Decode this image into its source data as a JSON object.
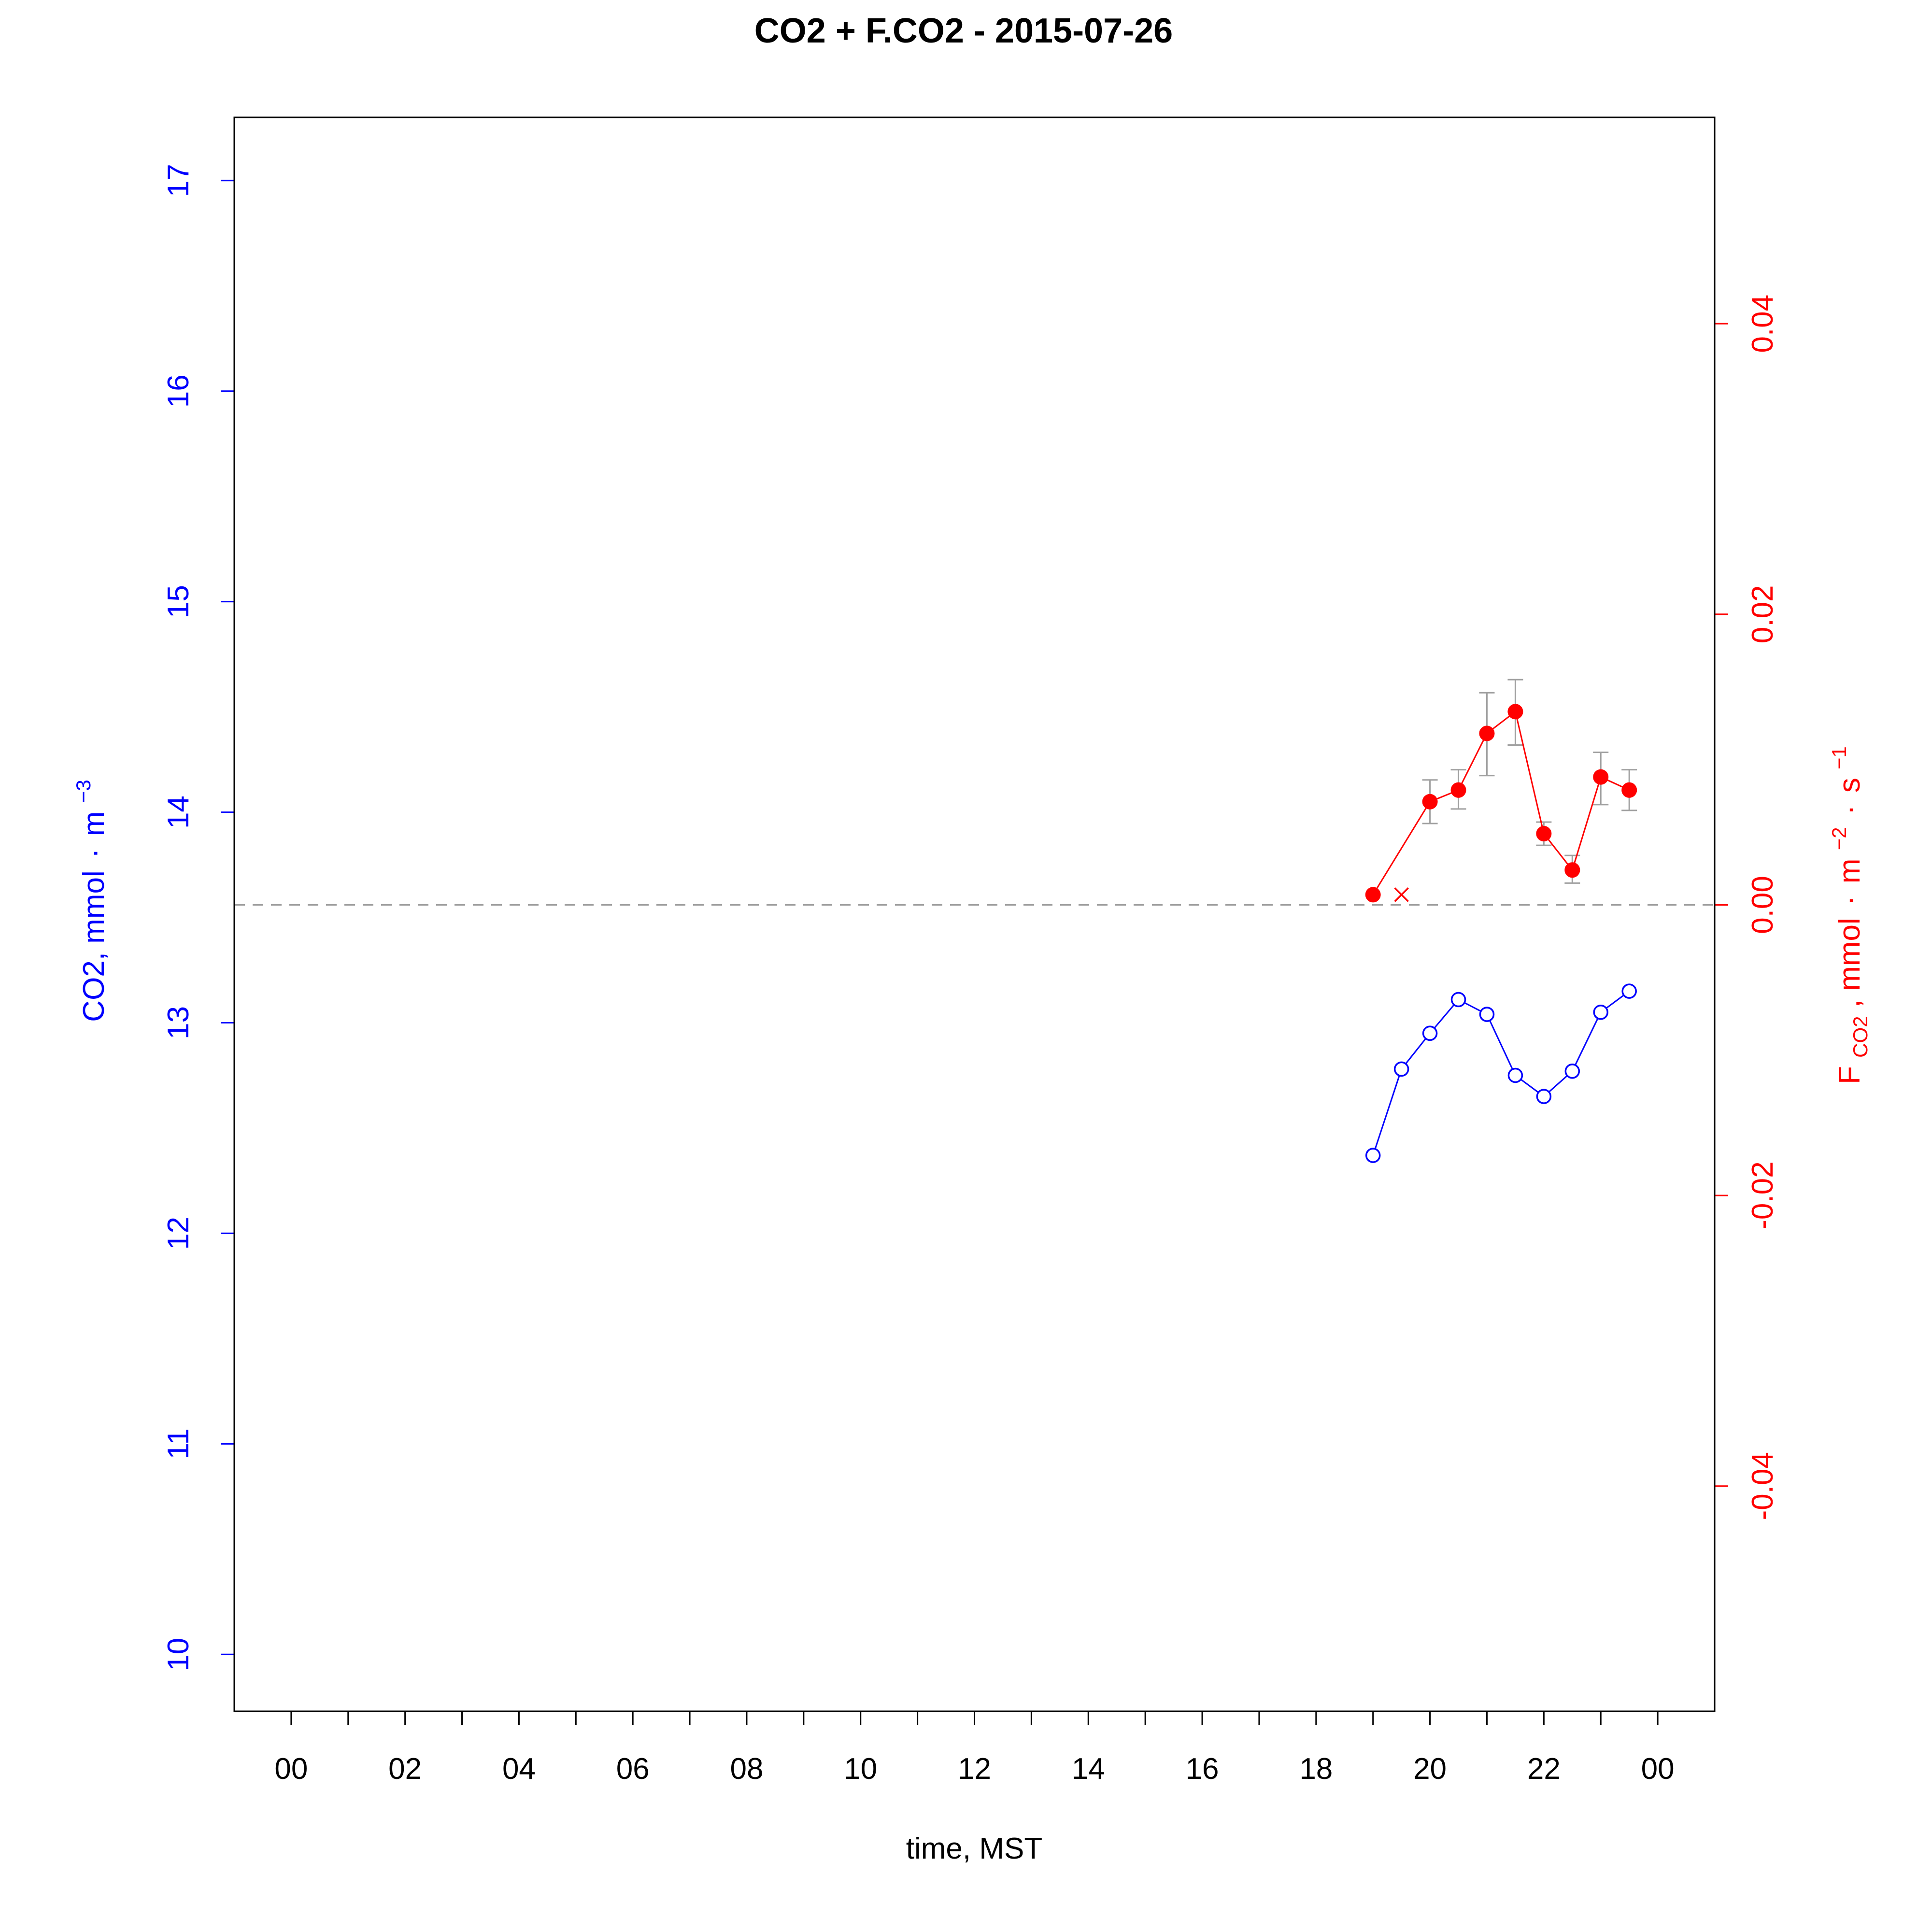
{
  "chart_data": {
    "type": "line",
    "title": "CO2 + F.CO2 -  2015-07-26",
    "xlabel": "time, MST",
    "x_ticks": [
      {
        "hour": 0,
        "label": "00"
      },
      {
        "hour": 2,
        "label": "02"
      },
      {
        "hour": 4,
        "label": "04"
      },
      {
        "hour": 6,
        "label": "06"
      },
      {
        "hour": 8,
        "label": "08"
      },
      {
        "hour": 10,
        "label": "10"
      },
      {
        "hour": 12,
        "label": "12"
      },
      {
        "hour": 14,
        "label": "14"
      },
      {
        "hour": 16,
        "label": "16"
      },
      {
        "hour": 18,
        "label": "18"
      },
      {
        "hour": 20,
        "label": "20"
      },
      {
        "hour": 22,
        "label": "22"
      },
      {
        "hour": 24,
        "label": "00"
      }
    ],
    "x_minor_ticks": [
      1,
      3,
      5,
      7,
      9,
      11,
      13,
      15,
      17,
      19,
      21,
      23
    ],
    "xlim": [
      -1,
      25
    ],
    "ylabel_left": {
      "main": "CO2, mmol",
      "dot": "·",
      "unit": "m",
      "sup": "−3"
    },
    "ylabel_right": {
      "F": "F",
      "sub": "CO2",
      "rest": ", mmol",
      "dot": "·",
      "m": "m",
      "sup_m": "−2",
      "s": "s",
      "sup_s": "−1"
    },
    "ylim_left": [
      9.73,
      17.3
    ],
    "ylim_right": [
      -0.0555,
      0.0542
    ],
    "y_ticks_left": [
      10,
      11,
      12,
      13,
      14,
      15,
      16,
      17
    ],
    "y_ticks_left_labels": [
      "10",
      "11",
      "12",
      "13",
      "14",
      "15",
      "16",
      "17"
    ],
    "y_ticks_right": [
      -0.04,
      -0.02,
      0.0,
      0.02,
      0.04
    ],
    "y_ticks_right_labels": [
      "-0.04",
      "-0.02",
      "0.00",
      "0.02",
      "0.04"
    ],
    "zero_line": 0.0,
    "colors": {
      "co2": "#0000ff",
      "flux": "#ff0000",
      "error": "#a0a0a0",
      "zero": "#a0a0a0",
      "axis": "#000000"
    },
    "series": [
      {
        "axis": "left",
        "marker": "open-circle",
        "color": "#0000ff",
        "x": [
          19.0,
          19.5,
          20.0,
          20.5,
          21.0,
          21.5,
          22.0,
          22.5,
          23.0,
          23.5
        ],
        "values": [
          12.37,
          12.78,
          12.95,
          13.11,
          13.04,
          12.75,
          12.65,
          12.77,
          13.05,
          13.15
        ]
      },
      {
        "axis": "right",
        "marker": "filled-circle",
        "color": "#ff0000",
        "segments": [
          {
            "x": [
              19.0
            ],
            "values": [
              0.0007
            ]
          },
          {
            "x": [
              20.0,
              20.5,
              21.0,
              21.5,
              22.0,
              22.5,
              23.0,
              23.5
            ],
            "values": [
              0.0071,
              0.0079,
              0.0118,
              0.0133,
              0.0049,
              0.0024,
              0.0088,
              0.0079
            ]
          }
        ],
        "join_first": true,
        "errors": {
          "x": [
            20.0,
            20.5,
            21.0,
            21.5,
            22.0,
            22.5,
            23.0,
            23.5
          ],
          "low": [
            0.0056,
            0.0066,
            0.0089,
            0.011,
            0.0041,
            0.0015,
            0.0069,
            0.0065
          ],
          "high": [
            0.0086,
            0.0093,
            0.0146,
            0.0155,
            0.0057,
            0.0034,
            0.0105,
            0.0093
          ]
        }
      },
      {
        "axis": "right",
        "marker": "cross",
        "color": "#ff0000",
        "x": [
          19.5
        ],
        "values": [
          0.0007
        ]
      }
    ]
  }
}
